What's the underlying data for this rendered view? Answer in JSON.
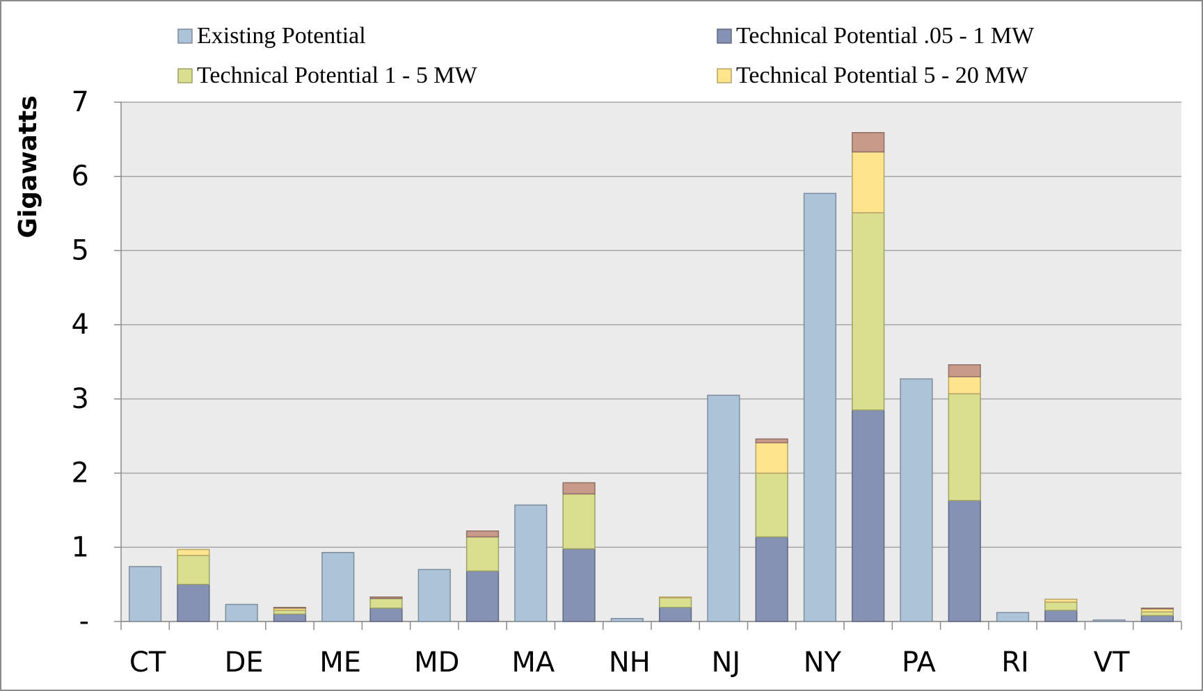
{
  "chart_data": {
    "type": "bar",
    "y_label": "Gigawatts",
    "categories": [
      "CT",
      "DE",
      "ME",
      "MD",
      "MA",
      "NH",
      "NJ",
      "NY",
      "PA",
      "RI",
      "VT"
    ],
    "series": [
      {
        "name": "Existing Potential",
        "color": "#adc3d8",
        "values": [
          0.74,
          0.23,
          0.93,
          0.7,
          1.57,
          0.04,
          3.05,
          5.77,
          3.27,
          0.12,
          0.02
        ]
      },
      {
        "name": "Technical Potential .05 - 1 MW",
        "color": "#8592b4",
        "values": [
          0.5,
          0.1,
          0.18,
          0.68,
          0.98,
          0.19,
          1.14,
          2.85,
          1.63,
          0.15,
          0.08
        ]
      },
      {
        "name": "Technical Potential 1 - 5 MW",
        "color": "#d9df8f",
        "values": [
          0.39,
          0.05,
          0.13,
          0.46,
          0.74,
          0.13,
          0.86,
          2.66,
          1.44,
          0.11,
          0.05
        ]
      },
      {
        "name": "Technical Potential 5 - 20 MW",
        "color": "#fde48d",
        "values": [
          0.08,
          0.03,
          0,
          0,
          0,
          0.01,
          0.41,
          0.82,
          0.23,
          0.04,
          0.04
        ]
      },
      {
        "color": "#c79a8a",
        "values": [
          0,
          0.01,
          0.02,
          0.08,
          0.15,
          0,
          0.05,
          0.26,
          0.16,
          0,
          0.01
        ]
      }
    ],
    "ylim": [
      0,
      7
    ],
    "yticks": [
      {
        "value": 0,
        "label": "-"
      },
      1,
      2,
      3,
      4,
      5,
      6,
      7
    ],
    "grid": true
  }
}
